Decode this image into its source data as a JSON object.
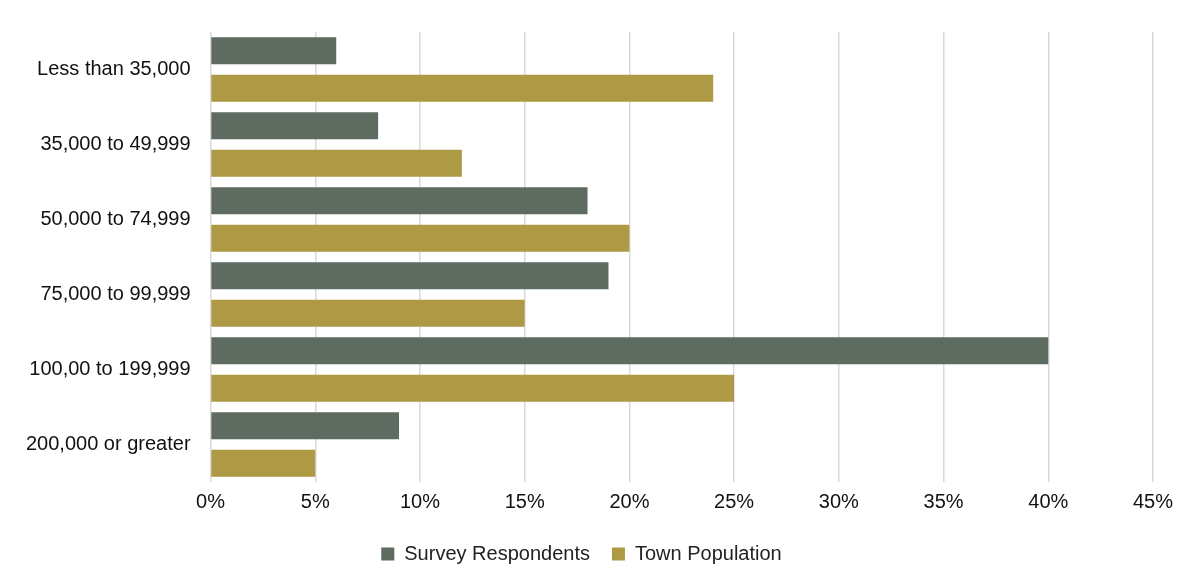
{
  "chart_data": {
    "type": "bar",
    "orientation": "horizontal",
    "categories": [
      "Less than 35,000",
      "35,000 to 49,999",
      "50,000 to 74,999",
      "75,000 to 99,999",
      "100,00 to 199,999",
      "200,000 or greater"
    ],
    "series": [
      {
        "name": "Survey Respondents",
        "color": "#5d6b60",
        "values": [
          6,
          8,
          18,
          19,
          40,
          9
        ]
      },
      {
        "name": "Town Population",
        "color": "#ae9a45",
        "values": [
          24,
          12,
          20,
          15,
          25,
          5
        ]
      }
    ],
    "xlim": [
      0,
      45
    ],
    "xticks": [
      {
        "value": 0,
        "label": "0%"
      },
      {
        "value": 5,
        "label": "5%"
      },
      {
        "value": 10,
        "label": "10%"
      },
      {
        "value": 15,
        "label": "15%"
      },
      {
        "value": 20,
        "label": "20%"
      },
      {
        "value": 25,
        "label": "25%"
      },
      {
        "value": 30,
        "label": "30%"
      },
      {
        "value": 35,
        "label": "35%"
      },
      {
        "value": 40,
        "label": "40%"
      },
      {
        "value": 45,
        "label": "45%"
      }
    ],
    "grid": "x",
    "legend": "bottom"
  }
}
